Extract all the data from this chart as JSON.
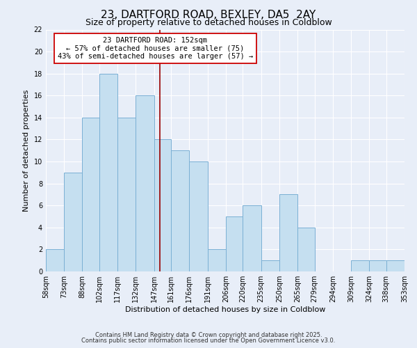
{
  "title": "23, DARTFORD ROAD, BEXLEY, DA5  2AY",
  "subtitle": "Size of property relative to detached houses in Coldblow",
  "bar_heights": [
    2,
    9,
    14,
    18,
    14,
    16,
    12,
    11,
    10,
    2,
    5,
    6,
    1,
    7,
    4,
    0,
    0,
    1,
    1,
    1
  ],
  "bin_labels": [
    "58sqm",
    "73sqm",
    "88sqm",
    "102sqm",
    "117sqm",
    "132sqm",
    "147sqm",
    "161sqm",
    "176sqm",
    "191sqm",
    "206sqm",
    "220sqm",
    "235sqm",
    "250sqm",
    "265sqm",
    "279sqm",
    "294sqm",
    "309sqm",
    "324sqm",
    "338sqm",
    "353sqm"
  ],
  "bin_edges": [
    58,
    73,
    88,
    102,
    117,
    132,
    147,
    161,
    176,
    191,
    206,
    220,
    235,
    250,
    265,
    279,
    294,
    309,
    324,
    338,
    353
  ],
  "bar_color": "#c5dff0",
  "bar_edge_color": "#7ab0d4",
  "vline_x": 152,
  "vline_color": "#990000",
  "ylabel": "Number of detached properties",
  "xlabel": "Distribution of detached houses by size in Coldblow",
  "ylim": [
    0,
    22
  ],
  "yticks": [
    0,
    2,
    4,
    6,
    8,
    10,
    12,
    14,
    16,
    18,
    20,
    22
  ],
  "annotation_title": "23 DARTFORD ROAD: 152sqm",
  "annotation_line1": "← 57% of detached houses are smaller (75)",
  "annotation_line2": "43% of semi-detached houses are larger (57) →",
  "footer1": "Contains HM Land Registry data © Crown copyright and database right 2025.",
  "footer2": "Contains public sector information licensed under the Open Government Licence v3.0.",
  "background_color": "#e8eef8",
  "grid_color": "#ffffff",
  "title_fontsize": 11,
  "subtitle_fontsize": 9,
  "axis_label_fontsize": 8,
  "tick_fontsize": 7,
  "annotation_fontsize": 7.5,
  "footer_fontsize": 6
}
